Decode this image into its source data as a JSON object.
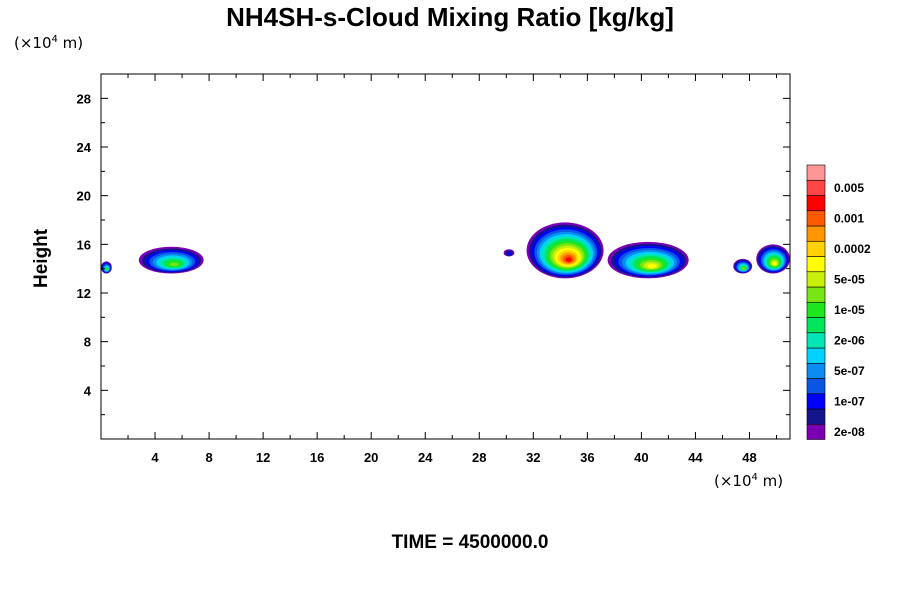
{
  "chart_data": {
    "type": "heatmap",
    "title": "NH4SH-s-Cloud Mixing Ratio [kg/kg]",
    "ylabel": "Height",
    "x_unit": {
      "prefix": "(×10",
      "exp": "4",
      "suffix": " m)"
    },
    "y_unit": {
      "prefix": "(×10",
      "exp": "4",
      "suffix": " m)"
    },
    "footer": "TIME = 4500000.0",
    "xlim": [
      0,
      51
    ],
    "ylim": [
      0,
      30
    ],
    "x_ticks": [
      4,
      8,
      12,
      16,
      20,
      24,
      28,
      32,
      36,
      40,
      44,
      48
    ],
    "y_ticks": [
      4,
      8,
      12,
      16,
      20,
      24,
      28
    ],
    "colorbar": {
      "colors": [
        "#7a00b4",
        "#14148c",
        "#0000ff",
        "#0a55e6",
        "#0a8cf0",
        "#00d2ff",
        "#00e6b4",
        "#00e65a",
        "#1ee61e",
        "#78e614",
        "#c8f00a",
        "#ffff00",
        "#ffd200",
        "#ff9600",
        "#ff5a00",
        "#ff0000",
        "#ff4646",
        "#ff9696"
      ],
      "labels": [
        "2e-08",
        "1e-07",
        "5e-07",
        "2e-06",
        "1e-05",
        "5e-05",
        "0.0002",
        "0.001",
        "0.005"
      ]
    },
    "cloud_features": [
      {
        "x": [
          0,
          0.8
        ],
        "y": [
          13.6,
          14.6
        ],
        "max_level": 8
      },
      {
        "x": [
          2.8,
          7.6
        ],
        "y": [
          13.6,
          15.8
        ],
        "max_level": 9
      },
      {
        "x": [
          29.8,
          30.6
        ],
        "y": [
          15.0,
          15.6
        ],
        "max_level": 2
      },
      {
        "x": [
          31.5,
          37.2
        ],
        "y": [
          13.2,
          17.8
        ],
        "max_level": 15
      },
      {
        "x": [
          37.5,
          43.5
        ],
        "y": [
          13.2,
          16.2
        ],
        "max_level": 11
      },
      {
        "x": [
          46.8,
          48.2
        ],
        "y": [
          13.6,
          14.8
        ],
        "max_level": 9
      },
      {
        "x": [
          48.5,
          51
        ],
        "y": [
          13.6,
          16.0
        ],
        "max_level": 11
      }
    ]
  }
}
